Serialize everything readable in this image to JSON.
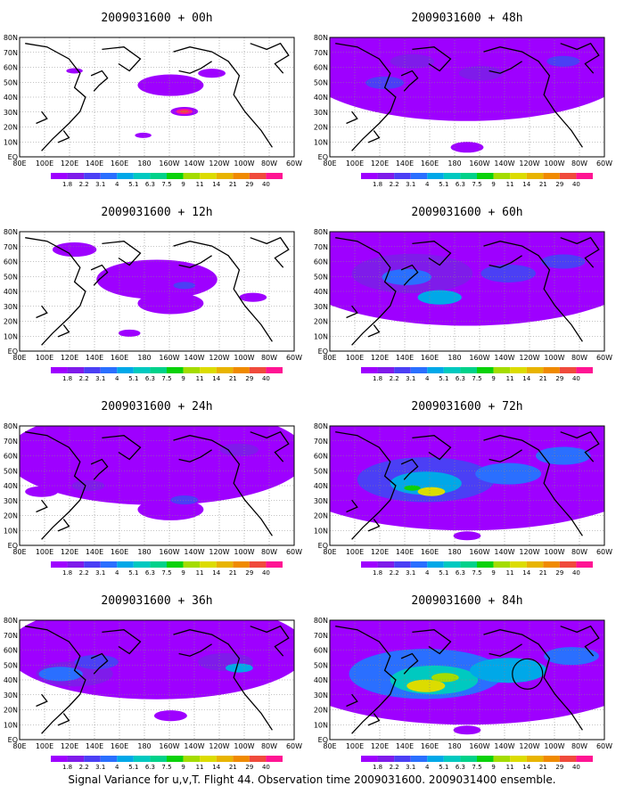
{
  "caption": "Signal Variance for u,v,T. Flight 44. Observation time 2009031600. 2009031400 ensemble.",
  "chart_data": {
    "type": "heatmap",
    "x_ticks": [
      "80E",
      "100E",
      "120E",
      "140E",
      "160E",
      "180",
      "160W",
      "140W",
      "120W",
      "100W",
      "80W",
      "60W"
    ],
    "y_ticks": [
      "80N",
      "70N",
      "60N",
      "50N",
      "40N",
      "30N",
      "20N",
      "10N",
      "EQ"
    ],
    "xlim": [
      "80E",
      "60W"
    ],
    "ylim": [
      "EQ",
      "80N"
    ],
    "grid": true,
    "colorbar": {
      "levels": [
        "1.8",
        "2.2",
        "3.1",
        "4",
        "5.1",
        "6.3",
        "7.5",
        "9",
        "11",
        "14",
        "21",
        "29",
        "40"
      ],
      "colors": [
        "#9e00ff",
        "#7f1bea",
        "#4b3ff5",
        "#2a6fff",
        "#00a8e8",
        "#00c9c0",
        "#00d28a",
        "#0ad20a",
        "#a4dc00",
        "#dcdc00",
        "#e8b400",
        "#f08a00",
        "#f04a3c",
        "#ff1493"
      ]
    },
    "panels": [
      {
        "title": "2009031600 + 00h"
      },
      {
        "title": "2009031600 + 48h"
      },
      {
        "title": "2009031600 + 12h"
      },
      {
        "title": "2009031600 + 60h"
      },
      {
        "title": "2009031600 + 24h"
      },
      {
        "title": "2009031600 + 72h"
      },
      {
        "title": "2009031600 + 36h"
      },
      {
        "title": "2009031600 + 84h"
      }
    ]
  }
}
